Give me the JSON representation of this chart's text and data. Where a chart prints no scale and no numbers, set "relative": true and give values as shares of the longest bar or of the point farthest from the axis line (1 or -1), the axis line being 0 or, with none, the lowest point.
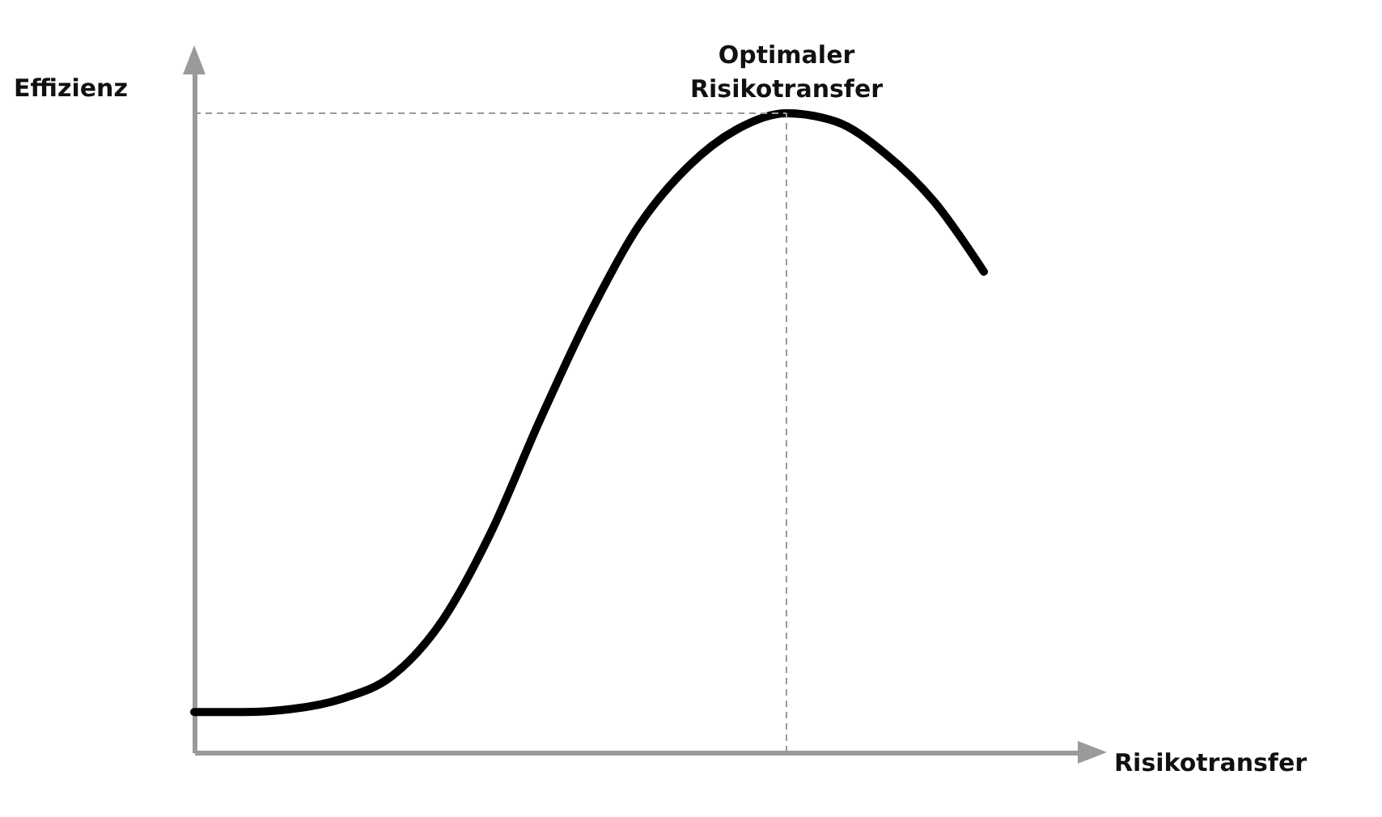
{
  "chart_data": {
    "type": "line",
    "relative": true,
    "xlabel": "Risikotransfer",
    "ylabel": "Effizienz",
    "categories": [
      null,
      null,
      null,
      null,
      null,
      null,
      null,
      null,
      null,
      null,
      null,
      null,
      null,
      null,
      null,
      null,
      null
    ],
    "series": [
      {
        "color": "#000000",
        "values": [
          0.063,
          0.063,
          0.068,
          0.084,
          0.119,
          0.203,
          0.342,
          0.519,
          0.684,
          0.823,
          0.916,
          0.975,
          1.0,
          0.987,
          0.937,
          0.861,
          0.752
        ]
      }
    ],
    "annotations": [
      {
        "text": "Optimaler\nRisikotransfer",
        "y": 1
      }
    ]
  }
}
